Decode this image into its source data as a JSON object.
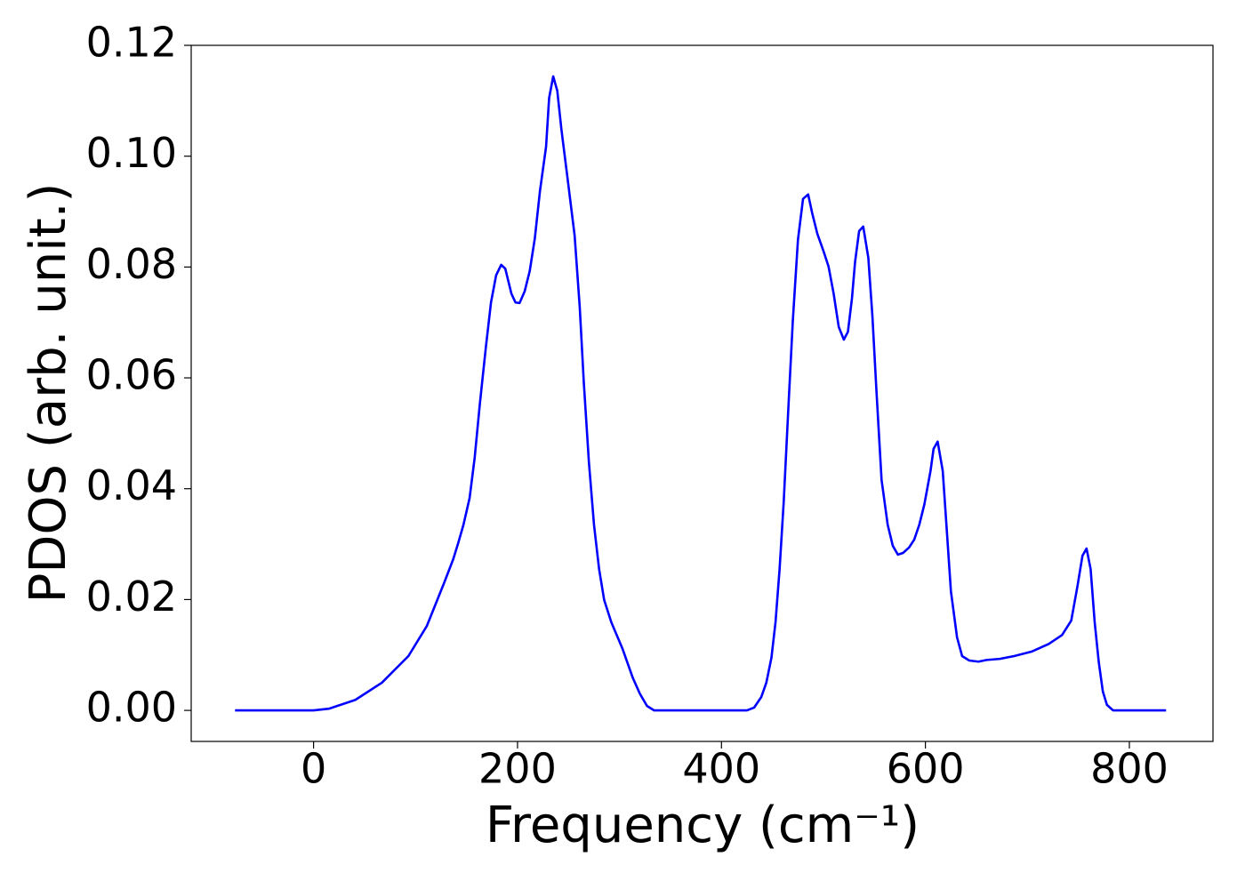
{
  "chart_data": {
    "type": "line",
    "xlabel": "Frequency (cm⁻¹)",
    "ylabel": "PDOS (arb. unit.)",
    "xlim": [
      -120,
      882
    ],
    "ylim": [
      -0.0056,
      0.12
    ],
    "xticks": [
      0,
      200,
      400,
      600,
      800
    ],
    "yticks": [
      {
        "value": 0,
        "label": "0.00"
      },
      {
        "value": 0.02,
        "label": "0.02"
      },
      {
        "value": 0.04,
        "label": "0.04"
      },
      {
        "value": 0.06,
        "label": "0.06"
      },
      {
        "value": 0.08,
        "label": "0.08"
      },
      {
        "value": 0.1,
        "label": "0.10"
      },
      {
        "value": 0.12,
        "label": "0.12"
      }
    ],
    "grid": false,
    "x": [
      -77,
      0,
      15,
      41,
      67,
      93,
      111,
      128,
      137,
      142,
      147,
      153,
      158,
      163,
      169,
      174,
      179,
      184,
      188,
      194,
      198,
      202,
      207,
      212,
      217,
      222,
      228,
      231,
      235,
      239,
      243,
      249,
      256,
      261,
      265,
      270,
      275,
      280,
      285,
      292,
      303,
      313,
      320,
      327,
      334,
      425,
      432,
      439,
      444,
      449,
      453,
      457,
      461,
      466,
      470,
      475,
      480,
      485,
      489,
      494,
      500,
      505,
      510,
      515,
      520,
      524,
      528,
      531,
      535,
      539,
      544,
      548,
      552,
      557,
      563,
      568,
      573,
      578,
      584,
      589,
      594,
      599,
      605,
      608,
      612,
      617,
      621,
      625,
      631,
      636,
      643,
      652,
      660,
      673,
      687,
      704,
      721,
      734,
      743,
      749,
      754,
      758,
      762,
      766,
      770,
      774,
      778,
      784,
      836
    ],
    "series": [
      {
        "name": "PDOS",
        "color": "#0000ff",
        "values": [
          0,
          0,
          0.0003,
          0.0019,
          0.005,
          0.0098,
          0.0152,
          0.023,
          0.0273,
          0.0303,
          0.0335,
          0.0383,
          0.0456,
          0.0552,
          0.0656,
          0.0736,
          0.0785,
          0.0804,
          0.0797,
          0.0752,
          0.0736,
          0.0735,
          0.0756,
          0.0793,
          0.0852,
          0.0937,
          0.1017,
          0.1105,
          0.1144,
          0.1118,
          0.1049,
          0.0961,
          0.0857,
          0.0728,
          0.0592,
          0.0448,
          0.0335,
          0.0255,
          0.0199,
          0.0159,
          0.0111,
          0.0059,
          0.003,
          0.0008,
          0,
          0,
          0.0005,
          0.0024,
          0.005,
          0.0095,
          0.0159,
          0.0255,
          0.0375,
          0.056,
          0.0704,
          0.0849,
          0.0923,
          0.0931,
          0.0897,
          0.086,
          0.0829,
          0.0801,
          0.0752,
          0.0692,
          0.0669,
          0.0683,
          0.0744,
          0.0809,
          0.0865,
          0.0873,
          0.0817,
          0.0712,
          0.0576,
          0.0416,
          0.0335,
          0.0297,
          0.0281,
          0.0284,
          0.0294,
          0.0308,
          0.0335,
          0.0372,
          0.0432,
          0.0472,
          0.0485,
          0.0432,
          0.0324,
          0.0215,
          0.0132,
          0.0098,
          0.009,
          0.0088,
          0.0091,
          0.0093,
          0.0098,
          0.0106,
          0.012,
          0.0136,
          0.0162,
          0.0223,
          0.0279,
          0.0292,
          0.0255,
          0.0159,
          0.0087,
          0.0034,
          0.001,
          0,
          0
        ]
      }
    ]
  }
}
